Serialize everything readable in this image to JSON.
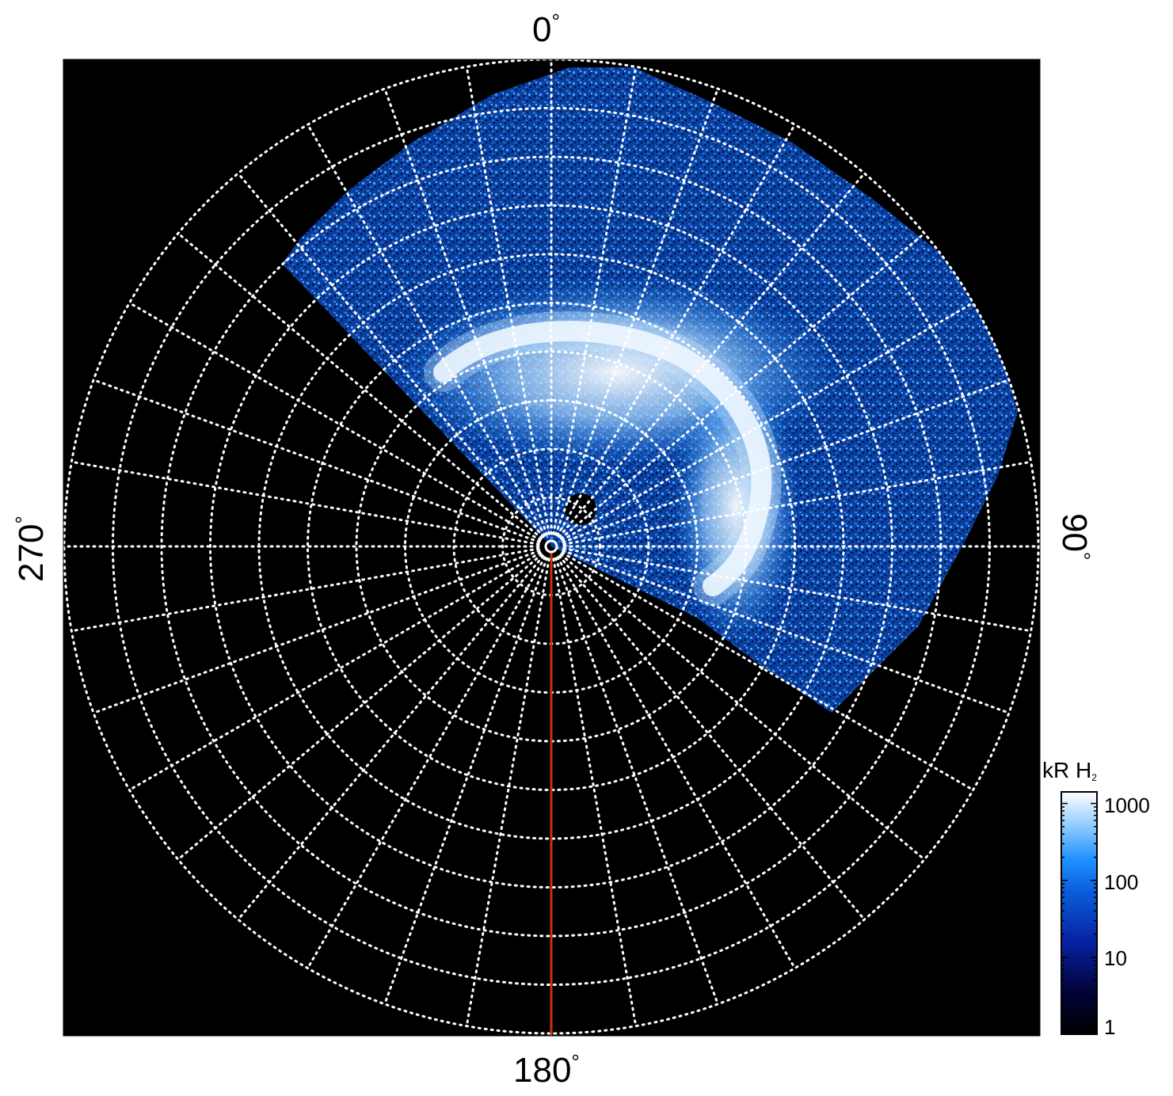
{
  "figure": {
    "azimuth_labels": {
      "top": "0",
      "right": "90",
      "bottom": "180",
      "left": "270",
      "degree_symbol": "°"
    },
    "colors": {
      "background": "#000000",
      "grid": "#ffffff",
      "meridian_marker": "#cc3300",
      "colormap": [
        "#000000",
        "#02033a",
        "#0622a0",
        "#0a5ad8",
        "#1e90ff",
        "#9fd3ff",
        "#ffffff"
      ]
    },
    "colorbar": {
      "title_main": "kR H",
      "title_sub": "2",
      "scale": "log",
      "ticks": [
        "1000",
        "100",
        "10",
        "1"
      ]
    },
    "grid": {
      "rings": 10,
      "spokes": 36,
      "style": "dotted"
    }
  }
}
